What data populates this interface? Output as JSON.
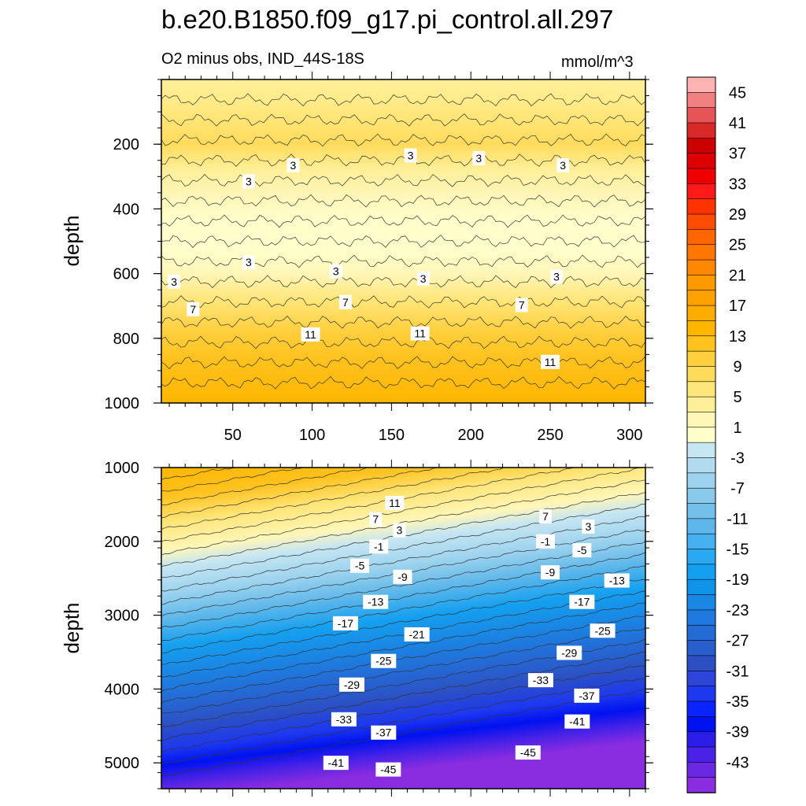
{
  "title": "b.e20.B1850.f09_g17.pi_control.all.297",
  "subtitle": "O2 minus obs, IND_44S-18S",
  "units": "mmol/m^3",
  "chart_data": [
    {
      "type": "heatmap",
      "panel": "upper",
      "ylabel": "depth",
      "xlim": [
        5,
        310
      ],
      "ylim": [
        1000,
        0
      ],
      "x_ticks": [
        50,
        100,
        150,
        200,
        250,
        300
      ],
      "y_ticks": [
        200,
        400,
        600,
        800,
        1000
      ],
      "contour_labels": [
        {
          "text": "3",
          "x": 88,
          "y": 265
        },
        {
          "text": "3",
          "x": 60,
          "y": 315
        },
        {
          "text": "3",
          "x": 162,
          "y": 235
        },
        {
          "text": "3",
          "x": 205,
          "y": 243
        },
        {
          "text": "3",
          "x": 258,
          "y": 265
        },
        {
          "text": "3",
          "x": 60,
          "y": 565
        },
        {
          "text": "3",
          "x": 13,
          "y": 625
        },
        {
          "text": "3",
          "x": 115,
          "y": 593
        },
        {
          "text": "3",
          "x": 170,
          "y": 615
        },
        {
          "text": "3",
          "x": 254,
          "y": 610
        },
        {
          "text": "7",
          "x": 25,
          "y": 710
        },
        {
          "text": "7",
          "x": 121,
          "y": 688
        },
        {
          "text": "7",
          "x": 232,
          "y": 697
        },
        {
          "text": "11",
          "x": 99,
          "y": 788
        },
        {
          "text": "11",
          "x": 168,
          "y": 785
        },
        {
          "text": "11",
          "x": 250,
          "y": 873
        }
      ]
    },
    {
      "type": "heatmap",
      "panel": "lower",
      "ylabel": "depth",
      "xlim": [
        5,
        310
      ],
      "ylim": [
        5350,
        1000
      ],
      "y_ticks": [
        1000,
        2000,
        3000,
        4000,
        5000
      ],
      "contour_labels": [
        {
          "text": "11",
          "x": 152,
          "y": 1480
        },
        {
          "text": "7",
          "x": 140,
          "y": 1700
        },
        {
          "text": "3",
          "x": 155,
          "y": 1850
        },
        {
          "text": "-1",
          "x": 142,
          "y": 2070
        },
        {
          "text": "-5",
          "x": 130,
          "y": 2330
        },
        {
          "text": "-9",
          "x": 157,
          "y": 2480
        },
        {
          "text": "-13",
          "x": 140,
          "y": 2820
        },
        {
          "text": "-17",
          "x": 121,
          "y": 3110
        },
        {
          "text": "-21",
          "x": 166,
          "y": 3260
        },
        {
          "text": "-25",
          "x": 145,
          "y": 3620
        },
        {
          "text": "-29",
          "x": 125,
          "y": 3940
        },
        {
          "text": "-33",
          "x": 120,
          "y": 4410
        },
        {
          "text": "-37",
          "x": 145,
          "y": 4590
        },
        {
          "text": "-41",
          "x": 115,
          "y": 5000
        },
        {
          "text": "-45",
          "x": 148,
          "y": 5090
        },
        {
          "text": "7",
          "x": 247,
          "y": 1660
        },
        {
          "text": "3",
          "x": 274,
          "y": 1800
        },
        {
          "text": "-1",
          "x": 247,
          "y": 2000
        },
        {
          "text": "-5",
          "x": 270,
          "y": 2120
        },
        {
          "text": "-9",
          "x": 250,
          "y": 2420
        },
        {
          "text": "-13",
          "x": 292,
          "y": 2530
        },
        {
          "text": "-17",
          "x": 270,
          "y": 2820
        },
        {
          "text": "-25",
          "x": 283,
          "y": 3210
        },
        {
          "text": "-29",
          "x": 262,
          "y": 3510
        },
        {
          "text": "-33",
          "x": 244,
          "y": 3880
        },
        {
          "text": "-37",
          "x": 273,
          "y": 4090
        },
        {
          "text": "-41",
          "x": 267,
          "y": 4440
        },
        {
          "text": "-45",
          "x": 236,
          "y": 4860
        }
      ]
    }
  ],
  "colorbar": {
    "labels": [
      "45",
      "41",
      "37",
      "33",
      "29",
      "25",
      "21",
      "17",
      "13",
      "9",
      "5",
      "1",
      "-3",
      "-7",
      "-11",
      "-15",
      "-19",
      "-23",
      "-27",
      "-31",
      "-35",
      "-39",
      "-43"
    ],
    "colors": [
      "#ffb3b3",
      "#f28080",
      "#e65555",
      "#d92828",
      "#cc0000",
      "#dd0000",
      "#ee0000",
      "#ff1a1a",
      "#ff3300",
      "#ff4d00",
      "#ff6600",
      "#ff7700",
      "#ff8800",
      "#ff9900",
      "#ffa200",
      "#ffac00",
      "#ffb600",
      "#ffc21f",
      "#ffcf3d",
      "#ffdb5c",
      "#ffe67a",
      "#ffef99",
      "#fff6b8",
      "#ffffcc",
      "#c6e6f2",
      "#b1dcf0",
      "#9dd3ee",
      "#88c9ec",
      "#73c0ea",
      "#5eb7ea",
      "#47b0ee",
      "#2aa9f2",
      "#14a0f0",
      "#1094ea",
      "#1a87e4",
      "#2079de",
      "#246bd6",
      "#285ecd",
      "#2c50c4",
      "#2f44d8",
      "#1e38f0",
      "#0a24ff",
      "#0012f0",
      "#2a1ee8",
      "#4a22e6",
      "#6a28e2",
      "#8a2ce0"
    ]
  }
}
